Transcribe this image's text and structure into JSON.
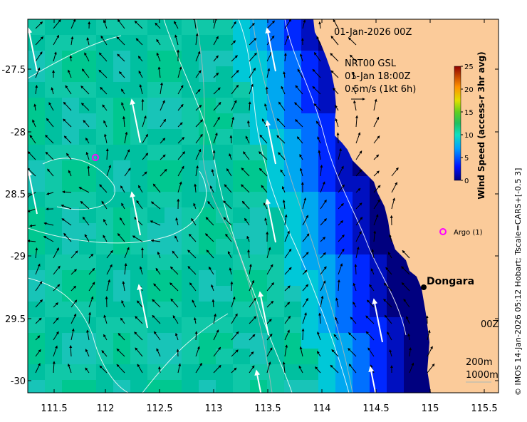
{
  "map": {
    "title_time": "01-Jan-2026 00Z",
    "model_name": "NRT00 GSL",
    "model_time": "01-Jan 18:00Z",
    "scale_label": "0.5m/s (1kt 6h)",
    "place_label": "Dongara",
    "argo_label": "Argo (1)",
    "contour_200": "200m",
    "contour_1000": "1000m",
    "partial_label": "00Z",
    "credit": "© IMOS 14-Jan-2026 05:12 Hobart; Tscale=CARS+[-0.5 3]",
    "lon_ticks": [
      "111.5",
      "112",
      "112.5",
      "113",
      "113.5",
      "114",
      "114.5",
      "115",
      "115.5"
    ],
    "lat_ticks": [
      "-27.5",
      "-28",
      "28.5",
      "-29",
      "29.5",
      "-30"
    ],
    "land_color": "#fbcb9a",
    "argo_color": "#ff00ff"
  },
  "colorbar": {
    "label": "Wind Speed (access-r 3hr avg)",
    "ticks": [
      "25",
      "20",
      "15",
      "10",
      "5",
      "0"
    ],
    "range": [
      0,
      25
    ]
  }
}
